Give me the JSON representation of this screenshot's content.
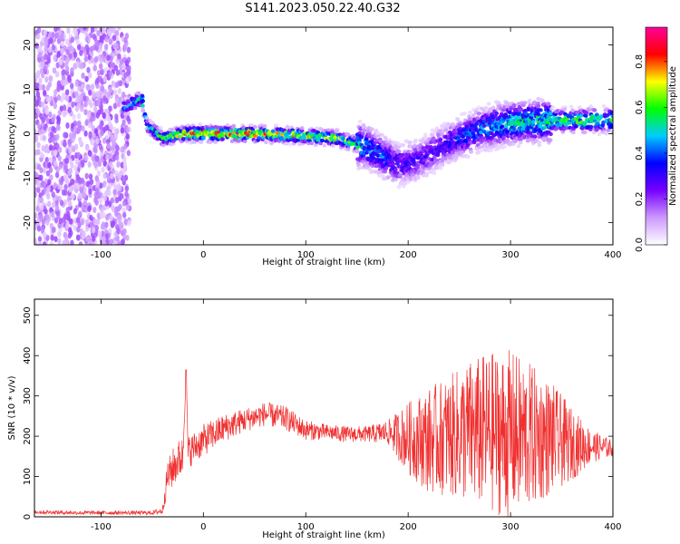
{
  "title": "S141.2023.050.22.40.G32",
  "chart_data": [
    {
      "type": "heatmap",
      "title": "S141.2023.050.22.40.G32",
      "xlabel": "Height of straight line (km)",
      "ylabel": "Frequency (Hz)",
      "xlim": [
        -165,
        400
      ],
      "ylim": [
        -25,
        24
      ],
      "xticks": [
        -100,
        0,
        100,
        200,
        300,
        400
      ],
      "yticks": [
        -20,
        -10,
        0,
        10,
        20
      ],
      "colorbar": {
        "label": "Normalized spectral amplitude",
        "range": [
          0.0,
          0.95
        ],
        "ticks": [
          "0.0",
          "0.2",
          "0.4",
          "0.6",
          "0.8"
        ],
        "colors": [
          "#ffffff",
          "#cc99ff",
          "#7700ff",
          "#0000ff",
          "#00ccff",
          "#00ff00",
          "#ffff00",
          "#ff0000",
          "#ff0099"
        ]
      },
      "ridge": [
        {
          "x": -75,
          "y": 6,
          "amp": 0.5
        },
        {
          "x": -60,
          "y": 8,
          "amp": 0.6
        },
        {
          "x": -55,
          "y": 2,
          "amp": 0.5
        },
        {
          "x": -40,
          "y": -1,
          "amp": 0.6
        },
        {
          "x": -20,
          "y": 0,
          "amp": 0.8
        },
        {
          "x": 0,
          "y": 0,
          "amp": 0.9
        },
        {
          "x": 50,
          "y": 0,
          "amp": 0.85
        },
        {
          "x": 100,
          "y": -0.5,
          "amp": 0.75
        },
        {
          "x": 130,
          "y": -1,
          "amp": 0.7
        },
        {
          "x": 160,
          "y": -3,
          "amp": 0.5
        },
        {
          "x": 190,
          "y": -7,
          "amp": 0.35
        },
        {
          "x": 210,
          "y": -6,
          "amp": 0.3
        },
        {
          "x": 240,
          "y": -2,
          "amp": 0.35
        },
        {
          "x": 270,
          "y": 1,
          "amp": 0.45
        },
        {
          "x": 300,
          "y": 2.5,
          "amp": 0.55
        },
        {
          "x": 350,
          "y": 3,
          "amp": 0.6
        },
        {
          "x": 400,
          "y": 3,
          "amp": 0.65
        }
      ],
      "legend_position": "right"
    },
    {
      "type": "line",
      "xlabel": "Height of straight line (km)",
      "ylabel": "SNR (10 * v/v)",
      "xlim": [
        -165,
        400
      ],
      "ylim": [
        0,
        540
      ],
      "xticks": [
        -100,
        0,
        100,
        200,
        300,
        400
      ],
      "yticks": [
        0,
        100,
        200,
        300,
        400,
        500
      ],
      "color": "#f03030",
      "series": [
        {
          "x": [
            -165,
            -120,
            -80,
            -50,
            -40,
            -35,
            -30,
            -25,
            -20,
            -17,
            -15,
            -10,
            0,
            20,
            40,
            60,
            80,
            100,
            120,
            140,
            160,
            180,
            200,
            220,
            240,
            260,
            280,
            300,
            320,
            340,
            360,
            380,
            400
          ],
          "mean": [
            12,
            10,
            10,
            10,
            15,
            100,
            120,
            140,
            150,
            360,
            160,
            170,
            190,
            220,
            240,
            255,
            245,
            215,
            210,
            205,
            205,
            210,
            195,
            190,
            200,
            210,
            210,
            205,
            200,
            195,
            180,
            175,
            170
          ],
          "spread": [
            5,
            5,
            5,
            5,
            10,
            40,
            50,
            50,
            50,
            10,
            40,
            40,
            40,
            35,
            30,
            30,
            30,
            25,
            20,
            20,
            20,
            30,
            90,
            130,
            150,
            180,
            200,
            210,
            180,
            140,
            90,
            40,
            20
          ]
        }
      ]
    }
  ]
}
